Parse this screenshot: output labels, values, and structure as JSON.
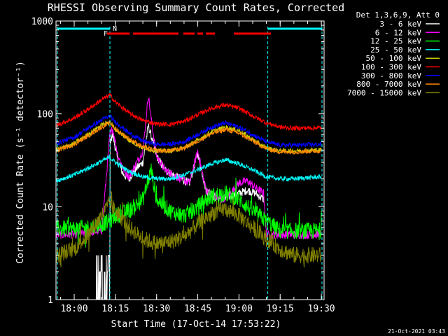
{
  "chart_data": {
    "type": "line",
    "title": "RHESSI Observing Summary Count Rates, Corrected",
    "xlabel": "Start Time (17-Oct-14 17:53:22)",
    "ylabel": "Corrected Count Rate (s⁻¹ detector⁻¹)",
    "x_range": [
      "17:53:22",
      "19:31:00"
    ],
    "ylim": [
      1,
      1000
    ],
    "y_scale": "log",
    "x_ticks": [
      "18:00",
      "18:15",
      "18:30",
      "18:45",
      "19:00",
      "19:15",
      "19:30"
    ],
    "y_ticks": [
      "1",
      "10",
      "100",
      "1000"
    ],
    "legend_header": "Det 1,3,6,9, Att 0",
    "legend_placement": "right",
    "timestamp": "21-Oct-2021 03:43",
    "grid": false,
    "flags": [
      {
        "label": "N",
        "color": "#00ffff"
      },
      {
        "label": "F",
        "color": "#ff0000"
      }
    ],
    "night_boundaries": [
      "18:13:00",
      "19:10:30"
    ],
    "series": [
      {
        "name": "3 - 6 keV",
        "color": "#ffffff",
        "x": [
          "18:08",
          "18:11",
          "18:12",
          "18:13",
          "18:14",
          "18:16",
          "18:18",
          "18:20",
          "18:22",
          "18:25",
          "18:27",
          "18:30",
          "18:33",
          "18:36",
          "18:39",
          "18:42",
          "18:45",
          "18:48",
          "18:51",
          "18:54",
          "18:57",
          "19:00",
          "19:03",
          "19:06",
          "19:09"
        ],
        "y": [
          1.5,
          2.5,
          3,
          50,
          60,
          30,
          22,
          20,
          25,
          30,
          75,
          35,
          25,
          22,
          20,
          18,
          38,
          15,
          13,
          12,
          13,
          14,
          15,
          14,
          12
        ]
      },
      {
        "name": "6 - 12 keV",
        "color": "#ff00ff",
        "x": [
          "17:53:22",
          "18:00",
          "18:10",
          "18:13",
          "18:14",
          "18:16",
          "18:18",
          "18:20",
          "18:22",
          "18:25",
          "18:27",
          "18:28",
          "18:30",
          "18:33",
          "18:36",
          "18:39",
          "18:42",
          "18:45",
          "18:48",
          "18:51",
          "18:54",
          "18:57",
          "19:00",
          "19:03",
          "19:06",
          "19:09",
          "19:10",
          "19:15",
          "19:30"
        ],
        "y": [
          5,
          5,
          5.5,
          60,
          70,
          35,
          25,
          21,
          27,
          40,
          160,
          90,
          35,
          25,
          22,
          20,
          18,
          40,
          15,
          13,
          12,
          14,
          18,
          19,
          16,
          14,
          5,
          5,
          5
        ]
      },
      {
        "name": "12 - 25 keV",
        "color": "#00ff00",
        "x": [
          "17:53:22",
          "18:00",
          "18:05",
          "18:10",
          "18:13",
          "18:15",
          "18:20",
          "18:25",
          "18:28",
          "18:30",
          "18:35",
          "18:40",
          "18:45",
          "18:50",
          "18:55",
          "19:00",
          "19:05",
          "19:10",
          "19:15",
          "19:20",
          "19:30"
        ],
        "y": [
          5.8,
          5.8,
          6,
          6.5,
          7,
          8,
          9,
          12,
          25,
          12,
          9,
          8,
          10,
          13,
          14,
          12,
          9,
          7,
          5.5,
          5.5,
          5.5
        ]
      },
      {
        "name": "25 - 50 keV",
        "color": "#00ffff",
        "x": [
          "17:53:22",
          "18:00",
          "18:05",
          "18:10",
          "18:13",
          "18:15",
          "18:20",
          "18:25",
          "18:30",
          "18:35",
          "18:40",
          "18:45",
          "18:50",
          "18:55",
          "19:00",
          "19:05",
          "19:10",
          "19:15",
          "19:20",
          "19:30"
        ],
        "y": [
          19,
          22,
          26,
          31,
          34,
          30,
          24,
          21,
          20,
          20,
          22,
          25,
          29,
          32,
          29,
          25,
          21,
          20,
          20,
          21
        ]
      },
      {
        "name": "50 - 100 keV",
        "color": "#cccc00",
        "x": [
          "17:53:22",
          "18:00",
          "18:05",
          "18:10",
          "18:13",
          "18:15",
          "18:20",
          "18:25",
          "18:30",
          "18:35",
          "18:40",
          "18:45",
          "18:50",
          "18:55",
          "19:00",
          "19:05",
          "19:10",
          "19:15",
          "19:20",
          "19:30"
        ],
        "y": [
          41,
          48,
          60,
          76,
          82,
          68,
          52,
          43,
          40,
          40,
          43,
          52,
          64,
          72,
          66,
          53,
          43,
          40,
          40,
          41
        ]
      },
      {
        "name": "100 - 300 keV",
        "color": "#ff0000",
        "x": [
          "17:53:22",
          "18:00",
          "18:05",
          "18:10",
          "18:13",
          "18:15",
          "18:20",
          "18:25",
          "18:30",
          "18:35",
          "18:40",
          "18:45",
          "18:50",
          "18:55",
          "19:00",
          "19:05",
          "19:10",
          "19:15",
          "19:20",
          "19:30"
        ],
        "y": [
          75,
          90,
          112,
          142,
          160,
          134,
          102,
          85,
          78,
          77,
          83,
          98,
          115,
          125,
          115,
          95,
          80,
          72,
          70,
          71
        ]
      },
      {
        "name": "300 - 800 keV",
        "color": "#0000ff",
        "x": [
          "17:53:22",
          "18:00",
          "18:05",
          "18:10",
          "18:13",
          "18:15",
          "18:20",
          "18:25",
          "18:30",
          "18:35",
          "18:40",
          "18:45",
          "18:50",
          "18:55",
          "19:00",
          "19:05",
          "19:10",
          "19:15",
          "19:20",
          "19:30"
        ],
        "y": [
          48,
          56,
          70,
          86,
          95,
          82,
          62,
          51,
          47,
          47,
          50,
          60,
          72,
          80,
          72,
          60,
          50,
          46,
          46,
          47
        ]
      },
      {
        "name": "800 - 7000 keV",
        "color": "#ff8800",
        "x": [
          "17:53:22",
          "18:00",
          "18:05",
          "18:10",
          "18:13",
          "18:15",
          "18:20",
          "18:25",
          "18:30",
          "18:35",
          "18:40",
          "18:45",
          "18:50",
          "18:55",
          "19:00",
          "19:05",
          "19:10",
          "19:15",
          "19:20",
          "19:30"
        ],
        "y": [
          40,
          47,
          58,
          72,
          80,
          69,
          54,
          44,
          40,
          40,
          43,
          51,
          61,
          68,
          62,
          51,
          42,
          39,
          39,
          40
        ]
      },
      {
        "name": "7000 - 15000 keV",
        "color": "#808000",
        "x": [
          "17:53:22",
          "18:00",
          "18:05",
          "18:10",
          "18:13",
          "18:15",
          "18:20",
          "18:25",
          "18:30",
          "18:35",
          "18:40",
          "18:45",
          "18:50",
          "18:55",
          "19:00",
          "19:05",
          "19:10",
          "19:15",
          "19:20",
          "19:30"
        ],
        "y": [
          3,
          3.5,
          5,
          8,
          11,
          9,
          6,
          4.5,
          4,
          4.2,
          4.8,
          6.5,
          8.5,
          9.5,
          8,
          6,
          4.5,
          3.5,
          3,
          3
        ]
      }
    ]
  }
}
